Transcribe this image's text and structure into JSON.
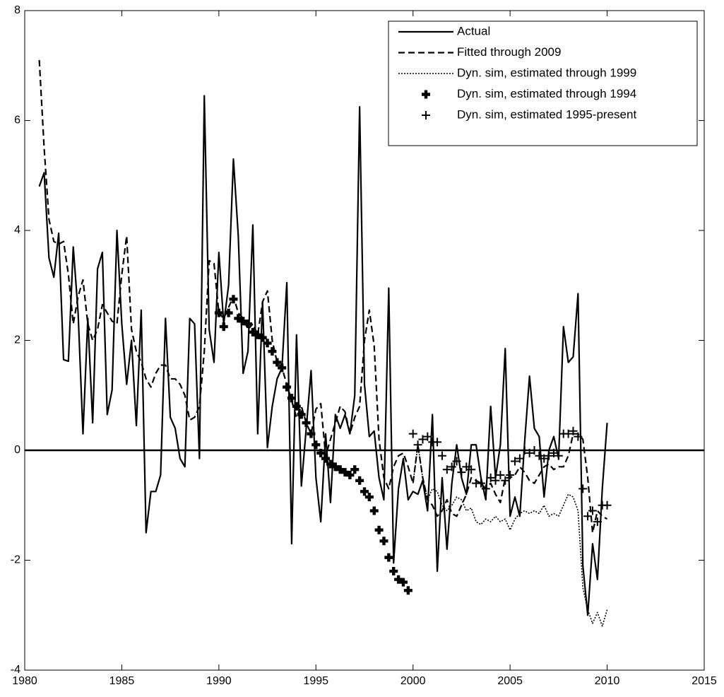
{
  "chart_data": {
    "type": "line",
    "x": [
      1980.75,
      1981,
      1981.25,
      1981.5,
      1981.75,
      1982,
      1982.25,
      1982.5,
      1982.75,
      1983,
      1983.25,
      1983.5,
      1983.75,
      1984,
      1984.25,
      1984.5,
      1984.75,
      1985,
      1985.25,
      1985.5,
      1985.75,
      1986,
      1986.25,
      1986.5,
      1986.75,
      1987,
      1987.25,
      1987.5,
      1987.75,
      1988,
      1988.25,
      1988.5,
      1988.75,
      1989,
      1989.25,
      1989.5,
      1989.75,
      1990,
      1990.25,
      1990.5,
      1990.75,
      1991,
      1991.25,
      1991.5,
      1991.75,
      1992,
      1992.25,
      1992.5,
      1992.75,
      1993,
      1993.25,
      1993.5,
      1993.75,
      1994,
      1994.25,
      1994.5,
      1994.75,
      1995,
      1995.25,
      1995.5,
      1995.75,
      1996,
      1996.25,
      1996.5,
      1996.75,
      1997,
      1997.25,
      1997.5,
      1997.75,
      1998,
      1998.25,
      1998.5,
      1998.75,
      1999,
      1999.25,
      1999.5,
      1999.75,
      2000,
      2000.25,
      2000.5,
      2000.75,
      2001,
      2001.25,
      2001.5,
      2001.75,
      2002,
      2002.25,
      2002.5,
      2002.75,
      2003,
      2003.25,
      2003.5,
      2003.75,
      2004,
      2004.25,
      2004.5,
      2004.75,
      2005,
      2005.25,
      2005.5,
      2005.75,
      2006,
      2006.25,
      2006.5,
      2006.75,
      2007,
      2007.25,
      2007.5,
      2007.75,
      2008,
      2008.25,
      2008.5,
      2008.75,
      2009,
      2009.25,
      2009.5,
      2009.75,
      2010
    ],
    "series": [
      {
        "name": "Actual",
        "color": "#000000",
        "linestyle": "solid",
        "marker": "none",
        "values": [
          4.8,
          5.05,
          3.5,
          3.15,
          3.95,
          1.65,
          1.62,
          3.7,
          2.5,
          0.3,
          2.4,
          0.5,
          3.3,
          3.6,
          0.65,
          1.1,
          4.0,
          2.3,
          1.2,
          2.0,
          0.45,
          2.55,
          -1.5,
          -0.75,
          -0.75,
          -0.45,
          2.4,
          0.6,
          0.4,
          -0.15,
          -0.3,
          2.4,
          2.3,
          -0.15,
          6.45,
          2.2,
          1.6,
          3.6,
          2.3,
          3.0,
          5.3,
          3.9,
          1.4,
          1.8,
          4.1,
          0.3,
          2.7,
          0.05,
          0.8,
          1.3,
          1.5,
          3.05,
          -1.7,
          2.1,
          -0.65,
          0.4,
          1.45,
          -0.5,
          -1.3,
          0.3,
          -0.95,
          0.65,
          0.4,
          0.65,
          0.3,
          1.0,
          6.25,
          1.2,
          0.25,
          0.35,
          -0.5,
          -0.9,
          2.95,
          -2.05,
          -0.7,
          -0.15,
          -0.9,
          -0.75,
          -0.8,
          -0.55,
          -1.1,
          0.65,
          -2.2,
          -0.5,
          -1.8,
          -0.6,
          0.1,
          -0.5,
          -0.8,
          0.1,
          0.1,
          -0.5,
          -0.9,
          0.8,
          -0.5,
          0.1,
          1.85,
          -1.2,
          -0.85,
          -1.2,
          0.15,
          1.35,
          0.4,
          0.25,
          -0.85,
          0.0,
          0.25,
          -0.15,
          2.25,
          1.6,
          1.7,
          2.85,
          -2.1,
          -3.0,
          -1.7,
          -2.35,
          -0.7,
          0.5
        ]
      },
      {
        "name": "Fitted through 2009",
        "color": "#000000",
        "linestyle": "dashed",
        "marker": "none",
        "values": [
          7.1,
          5.5,
          4.2,
          3.8,
          3.75,
          3.8,
          3.2,
          2.3,
          2.8,
          3.1,
          2.3,
          2.0,
          2.2,
          2.65,
          2.5,
          2.35,
          2.3,
          3.2,
          3.9,
          2.2,
          1.8,
          1.6,
          1.3,
          1.15,
          1.4,
          1.55,
          1.55,
          1.3,
          1.3,
          1.2,
          1.0,
          0.55,
          0.6,
          0.8,
          1.8,
          3.45,
          3.4,
          2.5,
          2.4,
          2.6,
          2.8,
          2.5,
          2.4,
          2.2,
          2.3,
          2.1,
          2.7,
          2.9,
          2.0,
          1.6,
          1.5,
          1.2,
          0.9,
          0.6,
          0.8,
          0.5,
          0.3,
          0.75,
          0.85,
          -0.1,
          0.2,
          0.5,
          0.8,
          0.7,
          0.3,
          0.6,
          0.8,
          2.0,
          2.55,
          1.9,
          0.2,
          -0.5,
          -0.7,
          -0.3,
          -0.1,
          -0.05,
          -0.3,
          -0.6,
          0.1,
          -0.5,
          -0.9,
          -1.0,
          -1.2,
          -1.1,
          -0.9,
          -1.15,
          -1.2,
          -1.0,
          -0.8,
          -0.5,
          -0.55,
          -0.6,
          -0.7,
          -0.6,
          -0.8,
          -0.95,
          -0.5,
          -0.5,
          -0.45,
          -0.3,
          -0.4,
          -0.55,
          -0.6,
          -0.45,
          -0.3,
          -0.25,
          -0.35,
          -0.3,
          -0.3,
          -0.1,
          0.3,
          0.3,
          0.2,
          -0.5,
          -1.5,
          -1.1,
          -1.2,
          -1.25
        ]
      },
      {
        "name": "Dyn. sim, estimated through 1999",
        "color": "#000000",
        "linestyle": "dotted",
        "marker": "none",
        "values": [
          null,
          null,
          null,
          null,
          null,
          null,
          null,
          null,
          null,
          null,
          null,
          null,
          null,
          null,
          null,
          null,
          null,
          null,
          null,
          null,
          null,
          null,
          null,
          null,
          null,
          null,
          null,
          null,
          null,
          null,
          null,
          null,
          null,
          null,
          null,
          null,
          null,
          null,
          null,
          null,
          null,
          null,
          null,
          null,
          null,
          null,
          null,
          null,
          null,
          null,
          null,
          null,
          null,
          null,
          null,
          null,
          null,
          null,
          null,
          null,
          null,
          null,
          null,
          null,
          null,
          null,
          null,
          null,
          null,
          null,
          null,
          null,
          null,
          null,
          null,
          null,
          null,
          -0.6,
          0.1,
          -0.5,
          -0.9,
          -0.7,
          -0.75,
          -1.0,
          -1.1,
          -1.0,
          -0.85,
          -0.9,
          -1.1,
          -1.05,
          -1.3,
          -1.35,
          -1.25,
          -1.3,
          -1.2,
          -1.3,
          -1.25,
          -1.45,
          -1.25,
          -1.15,
          -1.1,
          -1.15,
          -1.1,
          -1.15,
          -1.0,
          -1.2,
          -1.15,
          -1.2,
          -1.0,
          -0.8,
          -0.85,
          -1.1,
          -2.5,
          -2.9,
          -3.15,
          -2.95,
          -3.2,
          -2.9
        ]
      },
      {
        "name": "Dyn. sim, estimated through 1994",
        "color": "#000000",
        "linestyle": "none",
        "marker": "filled-plus",
        "values": [
          null,
          null,
          null,
          null,
          null,
          null,
          null,
          null,
          null,
          null,
          null,
          null,
          null,
          null,
          null,
          null,
          null,
          null,
          null,
          null,
          null,
          null,
          null,
          null,
          null,
          null,
          null,
          null,
          null,
          null,
          null,
          null,
          null,
          null,
          null,
          null,
          null,
          2.5,
          2.25,
          2.5,
          2.75,
          2.4,
          2.35,
          2.3,
          2.15,
          2.1,
          2.05,
          1.95,
          1.8,
          1.6,
          1.5,
          1.15,
          0.95,
          0.8,
          0.65,
          0.5,
          0.3,
          0.1,
          -0.05,
          -0.15,
          -0.25,
          -0.3,
          -0.35,
          -0.4,
          -0.45,
          -0.35,
          -0.55,
          -0.75,
          -0.85,
          -1.1,
          -1.45,
          -1.65,
          -1.95,
          -2.2,
          -2.35,
          -2.4,
          -2.55,
          null,
          null,
          null,
          null,
          null,
          null,
          null,
          null,
          null,
          null,
          null,
          null,
          null,
          null,
          null,
          null,
          null,
          null,
          null,
          null,
          null,
          null,
          null,
          null,
          null,
          null,
          null,
          null,
          null,
          null,
          null,
          null,
          null,
          null,
          null,
          null,
          null,
          null,
          null,
          null,
          null
        ]
      },
      {
        "name": "Dyn. sim, estimated 1995-present",
        "color": "#000000",
        "linestyle": "none",
        "marker": "plus",
        "values": [
          null,
          null,
          null,
          null,
          null,
          null,
          null,
          null,
          null,
          null,
          null,
          null,
          null,
          null,
          null,
          null,
          null,
          null,
          null,
          null,
          null,
          null,
          null,
          null,
          null,
          null,
          null,
          null,
          null,
          null,
          null,
          null,
          null,
          null,
          null,
          null,
          null,
          null,
          null,
          null,
          null,
          null,
          null,
          null,
          null,
          null,
          null,
          null,
          null,
          null,
          null,
          null,
          null,
          null,
          null,
          null,
          null,
          null,
          null,
          null,
          null,
          null,
          null,
          null,
          null,
          null,
          null,
          null,
          null,
          null,
          null,
          null,
          null,
          null,
          null,
          null,
          null,
          0.3,
          0.1,
          0.2,
          0.25,
          0.15,
          0.15,
          -0.1,
          -0.35,
          -0.3,
          -0.2,
          -0.4,
          -0.3,
          -0.35,
          -0.6,
          -0.6,
          -0.7,
          -0.5,
          -0.55,
          -0.45,
          -0.55,
          -0.45,
          -0.2,
          -0.15,
          0.0,
          -0.05,
          0.0,
          -0.1,
          -0.15,
          -0.1,
          -0.05,
          -0.1,
          0.3,
          0.3,
          0.35,
          0.25,
          -0.7,
          -1.2,
          -1.1,
          -1.3,
          -1.0,
          -1.0
        ]
      }
    ],
    "reference_line": 0,
    "xlim": [
      1980,
      2015
    ],
    "xticks": [
      1980,
      1985,
      1990,
      1995,
      2000,
      2005,
      2010,
      2015
    ],
    "ylim": [
      -4,
      8
    ],
    "yticks": [
      -4,
      -2,
      0,
      2,
      4,
      6,
      8
    ],
    "legend": "top-right",
    "grid": false
  }
}
